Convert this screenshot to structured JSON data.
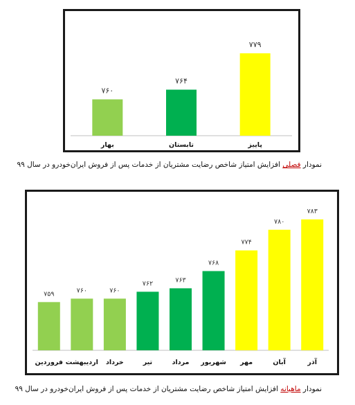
{
  "chart_data": [
    {
      "type": "bar",
      "categories": [
        "بهار",
        "تابستان",
        "پاییز"
      ],
      "values": [
        760,
        764,
        779
      ],
      "value_labels": [
        "۷۶۰",
        "۷۶۴",
        "۷۷۹"
      ],
      "colors": [
        "#92d050",
        "#00b050",
        "#ffff00"
      ],
      "ylim": [
        745,
        785
      ],
      "grid": false
    },
    {
      "type": "bar",
      "categories": [
        "فروردین",
        "اردیبهشت",
        "خرداد",
        "تیر",
        "مرداد",
        "شهریور",
        "مهر",
        "آبان",
        "آذر"
      ],
      "values": [
        759,
        760,
        760,
        762,
        763,
        768,
        774,
        780,
        783
      ],
      "value_labels": [
        "۷۵۹",
        "۷۶۰",
        "۷۶۰",
        "۷۶۲",
        "۷۶۳",
        "۷۶۸",
        "۷۷۴",
        "۷۸۰",
        "۷۸۳"
      ],
      "colors": [
        "#92d050",
        "#92d050",
        "#92d050",
        "#00b050",
        "#00b050",
        "#00b050",
        "#ffff00",
        "#ffff00",
        "#ffff00"
      ],
      "ylim": [
        745,
        787
      ],
      "grid": false
    }
  ],
  "captions": {
    "seasonal": {
      "prefix": "نمودار ",
      "highlight": "فصلی",
      "suffix": " افزایش امتیاز شاخص رضایت مشتریان از خدمات پس از فروش ایران‌خودرو در سال ۹۹"
    },
    "monthly": {
      "prefix": "نمودار ",
      "highlight": "ماهیانه",
      "suffix": " افزایش امتیاز شاخص رضایت مشتریان از خدمات پس از فروش ایران‌خودرو در سال ۹۹"
    }
  }
}
